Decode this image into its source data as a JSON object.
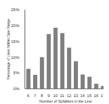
{
  "chart_data": {
    "type": "bar",
    "x_label": "Number of Syllables in the Line",
    "y_label": "Percentage of Lines Within Date Range",
    "categories": [
      "6",
      "7",
      "8",
      "9",
      "10",
      "11",
      "12",
      "13",
      "14",
      "15",
      "16",
      "17"
    ],
    "values": [
      6.3,
      4.4,
      10,
      17.3,
      19.3,
      17.6,
      13,
      8.7,
      4.5,
      3.8,
      1.6,
      0.9
    ],
    "color": "#7f7f7f",
    "ylim": [
      0,
      25
    ],
    "yticks": [
      {
        "value": 0,
        "label": "0%"
      },
      {
        "value": 5,
        "label": "5%"
      },
      {
        "value": 10,
        "label": "10%"
      },
      {
        "value": 15,
        "label": "15%"
      },
      {
        "value": 20,
        "label": "20%"
      },
      {
        "value": 25,
        "label": "25%"
      }
    ],
    "grid": false,
    "data_labels": false
  }
}
